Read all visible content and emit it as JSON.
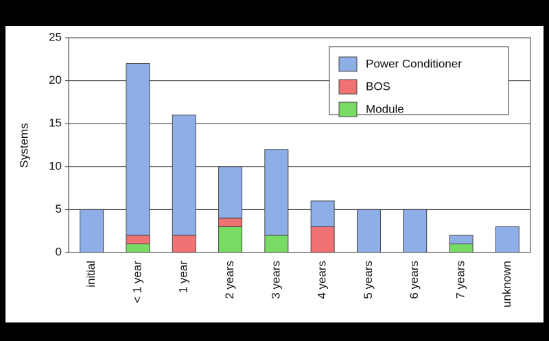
{
  "chart_data": {
    "type": "stacked_bar",
    "y_label": "Systems",
    "categories": [
      "initial",
      "< 1 year",
      "1 year",
      "2 years",
      "3 years",
      "4 years",
      "5 years",
      "6 years",
      "7 years",
      "unknown"
    ],
    "series": [
      {
        "name": "Power Conditioner",
        "color": "#8eaee8",
        "values": [
          5,
          20,
          14,
          6,
          10,
          3,
          5,
          5,
          1,
          3
        ]
      },
      {
        "name": "BOS",
        "color": "#f07272",
        "values": [
          0,
          1,
          2,
          1,
          0,
          3,
          0,
          0,
          0,
          0
        ]
      },
      {
        "name": "Module",
        "color": "#78dc64",
        "values": [
          0,
          1,
          0,
          3,
          2,
          0,
          0,
          0,
          1,
          0
        ]
      }
    ],
    "ylim": [
      0,
      25
    ],
    "yticks": [
      0,
      5,
      10,
      15,
      20,
      25
    ],
    "grid": true,
    "legend": "top-right"
  }
}
